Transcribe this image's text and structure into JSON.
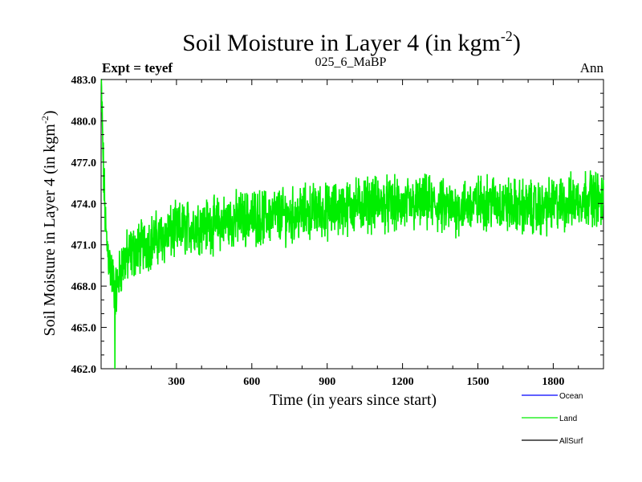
{
  "chart_data": {
    "type": "line",
    "title": "Soil Moisture in Layer 4 (in kgm",
    "title_sup": "-2",
    "title_close": ")",
    "subtitle_left": "Expt = teyef",
    "subtitle_center": "025_6_MaBP",
    "subtitle_right": "Ann",
    "xlabel": "Time (in years since start)",
    "ylabel": "Soil Moisture in Layer 4 (in kgm",
    "ylabel_sup": "-2",
    "ylabel_close": ")",
    "xlim": [
      0,
      2000
    ],
    "ylim": [
      462.0,
      483.0
    ],
    "xticks": [
      300,
      600,
      900,
      1200,
      1500,
      1800
    ],
    "xtick_labels": [
      "300",
      "600",
      "900",
      "1200",
      "1500",
      "1800"
    ],
    "yticks": [
      462.0,
      465.0,
      468.0,
      471.0,
      474.0,
      477.0,
      480.0,
      483.0
    ],
    "ytick_labels": [
      "462.0",
      "465.0",
      "468.0",
      "471.0",
      "474.0",
      "477.0",
      "480.0",
      "483.0"
    ],
    "legend": [
      {
        "name": "Ocean",
        "color": "#0000ff"
      },
      {
        "name": "Land",
        "color": "#00ee00"
      },
      {
        "name": "AllSurf",
        "color": "#000000"
      }
    ],
    "series": [
      {
        "name": "Land",
        "color": "#00ee00",
        "x": [
          0,
          10,
          20,
          40,
          60,
          80,
          100,
          150,
          200,
          250,
          300,
          350,
          400,
          450,
          500,
          550,
          600,
          650,
          700,
          750,
          800,
          850,
          900,
          950,
          1000,
          1050,
          1100,
          1150,
          1200,
          1250,
          1300,
          1350,
          1400,
          1450,
          1500,
          1550,
          1600,
          1650,
          1700,
          1750,
          1800,
          1850,
          1900,
          1950,
          2000
        ],
        "values": [
          483.0,
          476.0,
          471.5,
          469.0,
          467.5,
          469.5,
          470.0,
          470.8,
          471.3,
          471.6,
          472.0,
          472.3,
          472.5,
          472.4,
          472.7,
          472.9,
          473.0,
          473.0,
          473.2,
          473.1,
          473.3,
          473.5,
          473.4,
          473.6,
          473.8,
          474.0,
          474.0,
          473.9,
          473.8,
          473.9,
          474.0,
          473.7,
          473.6,
          473.8,
          474.0,
          474.2,
          473.9,
          473.8,
          473.7,
          473.6,
          473.9,
          474.0,
          474.3,
          474.6,
          474.0
        ],
        "amplitude": 1.5,
        "min": 462.0,
        "max": 483.0
      }
    ]
  }
}
